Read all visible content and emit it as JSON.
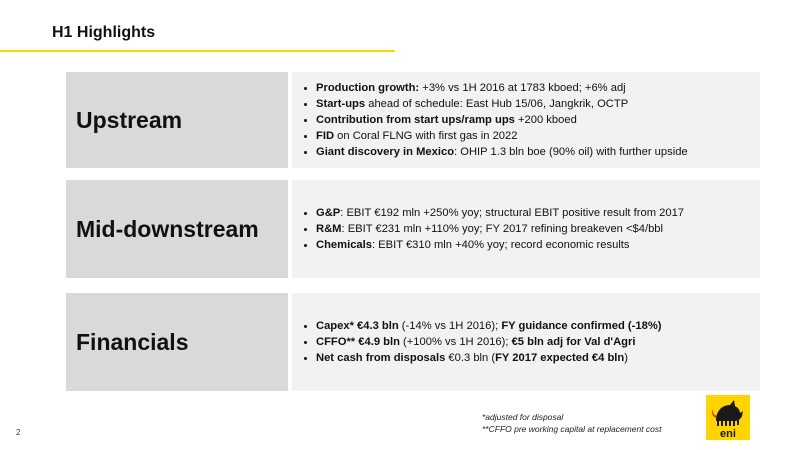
{
  "header": {
    "title": "H1 Highlights"
  },
  "sections": [
    {
      "label": "Upstream",
      "bullets": [
        [
          {
            "t": "Production growth:",
            "b": true
          },
          {
            "t": "  +3% vs 1H 2016 at 1783 kboed; +6% adj",
            "b": false
          }
        ],
        [
          {
            "t": "Start-ups",
            "b": true
          },
          {
            "t": " ahead of schedule: East Hub 15/06, Jangkrik, OCTP",
            "b": false
          }
        ],
        [
          {
            "t": "Contribution from start ups/ramp ups",
            "b": true
          },
          {
            "t": " +200 kboed",
            "b": false
          }
        ],
        [
          {
            "t": "FID",
            "b": true
          },
          {
            "t": " on Coral FLNG with first gas in 2022",
            "b": false
          }
        ],
        [
          {
            "t": "Giant discovery in Mexico",
            "b": true
          },
          {
            "t": ": OHIP 1.3 bln boe (90% oil) with further upside",
            "b": false
          }
        ]
      ]
    },
    {
      "label": "Mid-downstream",
      "bullets": [
        [
          {
            "t": "G&P",
            "b": true
          },
          {
            "t": ": EBIT €192 mln +250% yoy; structural EBIT positive result from 2017",
            "b": false
          }
        ],
        [
          {
            "t": "R&M",
            "b": true
          },
          {
            "t": ": EBIT €231 mln +110% yoy; FY 2017 refining breakeven <$4/bbl",
            "b": false
          }
        ],
        [
          {
            "t": "Chemicals",
            "b": true
          },
          {
            "t": ": EBIT €310 mln +40% yoy; record economic results",
            "b": false
          }
        ]
      ]
    },
    {
      "label": "Financials",
      "bullets": [
        [
          {
            "t": "Capex* €4.3 bln",
            "b": true
          },
          {
            "t": " (-14% vs 1H 2016); ",
            "b": false
          },
          {
            "t": "FY guidance confirmed (-18%)",
            "b": true
          }
        ],
        [
          {
            "t": "CFFO** €4.9 bln",
            "b": true
          },
          {
            "t": " (+100% vs 1H 2016); ",
            "b": false
          },
          {
            "t": "€5 bln adj for Val d'Agri",
            "b": true
          }
        ],
        [
          {
            "t": "Net cash from disposals",
            "b": true
          },
          {
            "t": " €0.3 bln (",
            "b": false
          },
          {
            "t": "FY 2017 expected €4 bln",
            "b": true
          },
          {
            "t": ")",
            "b": false
          }
        ]
      ]
    }
  ],
  "footnotes": [
    "*adjusted for disposal",
    "**CFFO pre working capital at replacement cost"
  ],
  "page_number": "2",
  "logo": {
    "text": "eni",
    "icon": "six-legged-dog-icon",
    "colors": {
      "yellow": "#ffd400",
      "dark": "#1a1a1a"
    }
  }
}
